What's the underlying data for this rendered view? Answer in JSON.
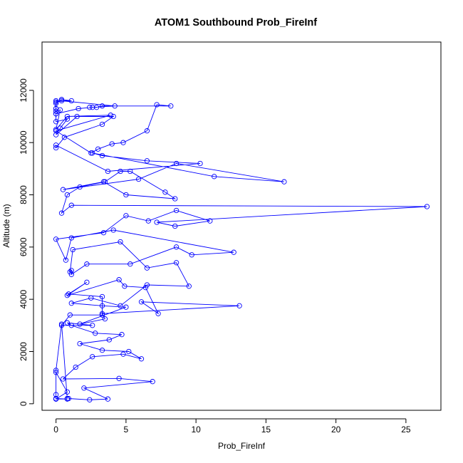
{
  "chart_data": {
    "type": "line",
    "title": "ATOM1 Southbound Prob_FireInf",
    "xlabel": "Prob_FireInf",
    "ylabel": "Altitude (m)",
    "xlim": [
      -1.0,
      27.5
    ],
    "ylim": [
      -250,
      13850
    ],
    "xticks": [
      0,
      5,
      10,
      15,
      20,
      25
    ],
    "yticks": [
      0,
      2000,
      4000,
      6000,
      8000,
      10000,
      12000
    ],
    "grid": false,
    "legend": "none",
    "marker": "open-circle",
    "color": "#0000ff",
    "series": [
      {
        "x": [
          0.9,
          2.4,
          3.7,
          2.0,
          6.9,
          4.5,
          0.5,
          1.4,
          2.6,
          4.8,
          6.1,
          5.2,
          3.3,
          1.7,
          3.8,
          4.7,
          2.8,
          1.1,
          0.8,
          2.6,
          0.4,
          1.0,
          3.3,
          3.3,
          0.9,
          2.2,
          0.8,
          4.5,
          4.9,
          6.4,
          7.3,
          6.1,
          13.1,
          3.3,
          3.5,
          1.7,
          5.0,
          3.3,
          1.1,
          2.5,
          4.6,
          6.5,
          9.5,
          8.6,
          6.5,
          4.6,
          1.2,
          1.0,
          1.1,
          1.1,
          2.2,
          5.3,
          8.6,
          9.7,
          12.7,
          4.1,
          1.1,
          0.7,
          0.0,
          3.4,
          5.0,
          6.6,
          8.6,
          11.0,
          8.5,
          7.2,
          26.5,
          1.1,
          0.4,
          0.8,
          1.7,
          3.5,
          4.6,
          5.3,
          7.8,
          8.5,
          5.0,
          3.4,
          0.5,
          5.9,
          8.6,
          16.3,
          11.3,
          2.6,
          3.3,
          6.5,
          10.3,
          3.7,
          0.0,
          0.0,
          0.6,
          3.3,
          4.1,
          1.5,
          0.0,
          0.3,
          0.8,
          0.0,
          0.0,
          1.6,
          2.6,
          4.2,
          0.4,
          0.0,
          0.0,
          0.0,
          0.0,
          0.3,
          0.0,
          0.8,
          3.9,
          0.0,
          2.5,
          3.0,
          4.0,
          4.8,
          6.5,
          7.2,
          8.2,
          3.3,
          2.9,
          2.4
        ],
        "y": [
          200,
          150,
          180,
          600,
          850,
          970,
          950,
          1400,
          1800,
          1900,
          1720,
          2000,
          2050,
          2300,
          2450,
          2650,
          2700,
          3000,
          3100,
          3000,
          3000,
          3400,
          3400,
          4100,
          4200,
          4650,
          4150,
          4750,
          4500,
          4450,
          3450,
          3900,
          3750,
          3450,
          3250,
          3050,
          3700,
          3750,
          3850,
          4050,
          3750,
          4550,
          4500,
          5400,
          5200,
          6200,
          5900,
          5050,
          5100,
          4950,
          5350,
          5350,
          6000,
          5700,
          5800,
          6650,
          6350,
          5500,
          6300,
          6550,
          7200,
          7000,
          7400,
          7000,
          6800,
          6950,
          7550,
          7600,
          7300,
          8000,
          8300,
          8500,
          8900,
          8900,
          8100,
          7850,
          8000,
          8500,
          8200,
          8600,
          9200,
          8500,
          8700,
          9600,
          9500,
          9300,
          9200,
          8900,
          9900,
          9800,
          10200,
          10700,
          11000,
          11000,
          10300,
          10550,
          10900,
          10800,
          11100,
          11300,
          11350,
          11400,
          11600,
          11550,
          11300,
          11100,
          11200,
          11250,
          10500,
          11000,
          11050,
          10450,
          9600,
          9750,
          9950,
          10000,
          10450,
          11450,
          11400,
          11400,
          11350,
          11350
        ]
      },
      {
        "x": [
          0.0,
          0.8,
          0.0,
          0.0,
          0.0,
          0.8,
          0.0,
          0.0,
          0.4,
          0.8
        ],
        "y": [
          180,
          180,
          200,
          350,
          1200,
          450,
          180,
          1280,
          3050,
          200
        ]
      },
      {
        "x": [
          0.0,
          1.1,
          0.4,
          0.0,
          0.0
        ],
        "y": [
          11600,
          11600,
          11650,
          11500,
          11300
        ]
      }
    ]
  }
}
